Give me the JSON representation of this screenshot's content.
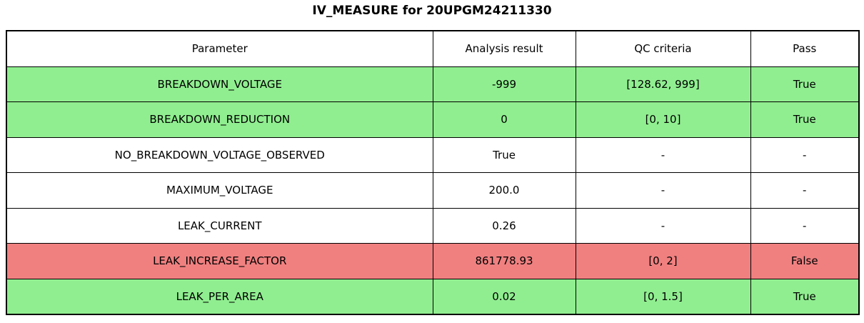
{
  "title": "IV_MEASURE for 20UPGM24211330",
  "colors": {
    "pass": "#90ee90",
    "fail": "#f08080",
    "neutral": "#ffffff",
    "border": "#000000"
  },
  "chart_data": {
    "type": "table",
    "title": "IV_MEASURE for 20UPGM24211330",
    "columns": [
      "Parameter",
      "Analysis result",
      "QC criteria",
      "Pass"
    ],
    "rows": [
      [
        "BREAKDOWN_VOLTAGE",
        "-999",
        "[128.62, 999]",
        "True"
      ],
      [
        "BREAKDOWN_REDUCTION",
        "0",
        "[0, 10]",
        "True"
      ],
      [
        "NO_BREAKDOWN_VOLTAGE_OBSERVED",
        "True",
        "-",
        "-"
      ],
      [
        "MAXIMUM_VOLTAGE",
        "200.0",
        "-",
        "-"
      ],
      [
        "LEAK_CURRENT",
        "0.26",
        "-",
        "-"
      ],
      [
        "LEAK_INCREASE_FACTOR",
        "861778.93",
        "[0, 2]",
        "False"
      ],
      [
        "LEAK_PER_AREA",
        "0.02",
        "[0, 1.5]",
        "True"
      ]
    ],
    "row_status": [
      "pass",
      "pass",
      "neutral",
      "neutral",
      "neutral",
      "fail",
      "pass"
    ],
    "legend_position": "none",
    "grid": true
  }
}
